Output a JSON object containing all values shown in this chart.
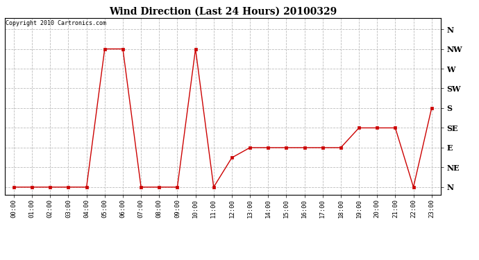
{
  "title": "Wind Direction (Last 24 Hours) 20100329",
  "copyright": "Copyright 2010 Cartronics.com",
  "line_color": "#cc0000",
  "marker_color": "#cc0000",
  "grid_color": "#bbbbbb",
  "x_labels": [
    "00:00",
    "01:00",
    "02:00",
    "03:00",
    "04:00",
    "05:00",
    "06:00",
    "07:00",
    "08:00",
    "09:00",
    "10:00",
    "11:00",
    "12:00",
    "13:00",
    "14:00",
    "15:00",
    "16:00",
    "17:00",
    "18:00",
    "19:00",
    "20:00",
    "21:00",
    "22:00",
    "23:00"
  ],
  "y_ticks": [
    0,
    45,
    90,
    135,
    180,
    225,
    270,
    315,
    360
  ],
  "y_labels": [
    "N",
    "NE",
    "E",
    "SE",
    "S",
    "SW",
    "W",
    "NW",
    "N"
  ],
  "ylim": [
    -18,
    385
  ],
  "data_values": [
    0,
    0,
    0,
    0,
    0,
    315,
    315,
    0,
    0,
    0,
    315,
    0,
    67,
    90,
    90,
    90,
    90,
    90,
    90,
    135,
    135,
    135,
    0,
    180
  ]
}
